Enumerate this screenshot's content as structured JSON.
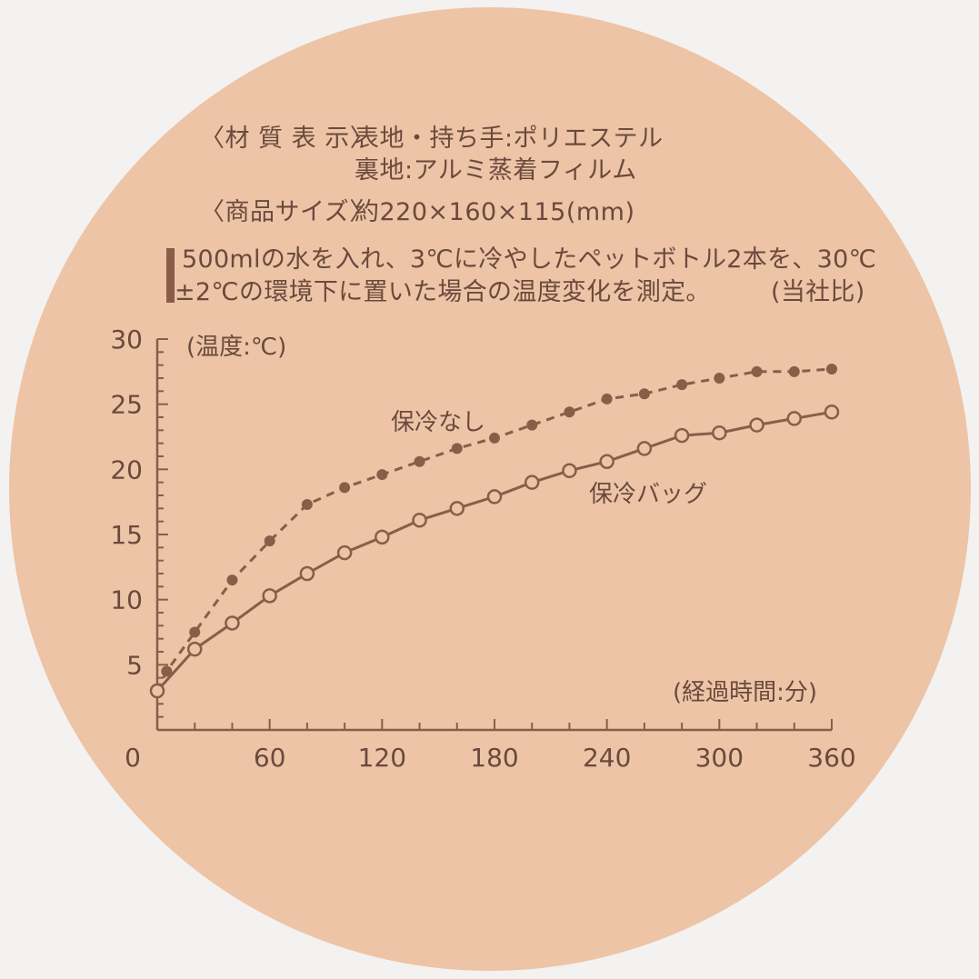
{
  "spec": {
    "material_label": "〈材 質 表 示〉",
    "material_line1": "表地・持ち手:ポリエステル",
    "material_line2": "裏地:アルミ蒸着フィルム",
    "size_label": "〈商品サイズ〉",
    "size_value": "約220×160×115(mm)"
  },
  "note": {
    "line1": "500mlの水を入れ、3℃に冷やしたペットボトル2本を、30℃",
    "line2": "±2℃の環境下に置いた場合の温度変化を測定。",
    "source": "(当社比)"
  },
  "colors": {
    "background": "#edc4a6",
    "ink": "#6b4a3d",
    "no_cooling_line": "#8a5d49",
    "cooling_bag_line": "#8a5d49"
  },
  "chart_data": {
    "type": "line",
    "ylabel": "(温度:℃)",
    "xlabel": "(経過時間:分)",
    "xlim": [
      0,
      360
    ],
    "ylim": [
      0,
      30
    ],
    "x_ticks": [
      "0",
      "60",
      "120",
      "180",
      "240",
      "300",
      "360"
    ],
    "y_ticks": [
      "5",
      "10",
      "15",
      "20",
      "25",
      "30"
    ],
    "series": [
      {
        "name": "保冷なし",
        "style": "dashed-filled",
        "points": [
          [
            0,
            3
          ],
          [
            5,
            4.5
          ],
          [
            20,
            7.5
          ],
          [
            40,
            11.5
          ],
          [
            60,
            14.5
          ],
          [
            80,
            17.3
          ],
          [
            100,
            18.6
          ],
          [
            120,
            19.6
          ],
          [
            140,
            20.6
          ],
          [
            160,
            21.6
          ],
          [
            180,
            22.4
          ],
          [
            200,
            23.4
          ],
          [
            220,
            24.4
          ],
          [
            240,
            25.4
          ],
          [
            260,
            25.8
          ],
          [
            280,
            26.5
          ],
          [
            300,
            27
          ],
          [
            320,
            27.5
          ],
          [
            340,
            27.5
          ],
          [
            360,
            27.7
          ]
        ]
      },
      {
        "name": "保冷バッグ",
        "style": "solid-hollow",
        "points": [
          [
            0,
            3
          ],
          [
            20,
            6.2
          ],
          [
            40,
            8.2
          ],
          [
            60,
            10.3
          ],
          [
            80,
            12
          ],
          [
            100,
            13.6
          ],
          [
            120,
            14.8
          ],
          [
            140,
            16.1
          ],
          [
            160,
            17
          ],
          [
            180,
            17.9
          ],
          [
            200,
            19
          ],
          [
            220,
            19.9
          ],
          [
            240,
            20.6
          ],
          [
            260,
            21.6
          ],
          [
            280,
            22.6
          ],
          [
            300,
            22.8
          ],
          [
            320,
            23.4
          ],
          [
            340,
            23.9
          ],
          [
            360,
            24.4
          ]
        ]
      }
    ]
  }
}
